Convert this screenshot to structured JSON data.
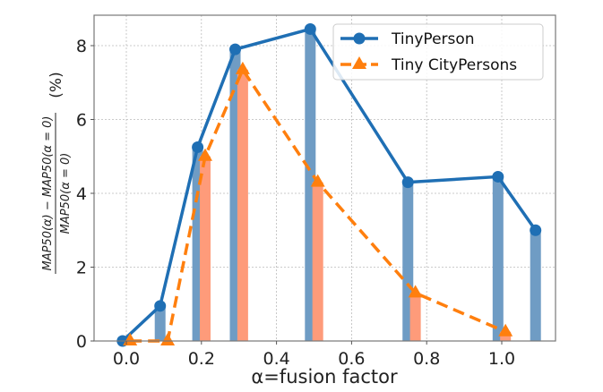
{
  "chart_data": {
    "type": "line",
    "title": "",
    "xlabel": "α=fusion factor",
    "ylabel_numerator": "MAP50(α) − MAP50(α = 0)",
    "ylabel_denominator": "MAP50(α = 0)",
    "ylabel_unit": "(%)",
    "xlim": [
      -0.08,
      1.12
    ],
    "ylim": [
      0,
      8.8
    ],
    "xticks": [
      0.0,
      0.2,
      0.4,
      0.6,
      0.8,
      1.0
    ],
    "xtick_labels": [
      "0.0",
      "0.2",
      "0.4",
      "0.6",
      "0.8",
      "1.0"
    ],
    "yticks": [
      0,
      2,
      4,
      6,
      8
    ],
    "ytick_labels": [
      "0",
      "2",
      "4",
      "6",
      "8"
    ],
    "grid": true,
    "legend_position": "top-right",
    "series": [
      {
        "name": "TinyPerson",
        "style": "solid-circle",
        "color": "#1f6fb4",
        "bar_color": "#6f9cc4",
        "x": [
          -0.01,
          0.09,
          0.19,
          0.29,
          0.49,
          0.75,
          0.99,
          1.09
        ],
        "values": [
          0.0,
          0.95,
          5.25,
          7.9,
          8.45,
          4.3,
          4.45,
          3.0
        ]
      },
      {
        "name": "Tiny CityPersons",
        "style": "dashed-triangle",
        "color": "#ff7f0e",
        "bar_color": "#fe9b7a",
        "x": [
          0.01,
          0.11,
          0.21,
          0.31,
          0.51,
          0.77,
          1.01
        ],
        "values": [
          0.0,
          0.0,
          5.0,
          7.35,
          4.3,
          1.3,
          0.25
        ]
      }
    ]
  }
}
